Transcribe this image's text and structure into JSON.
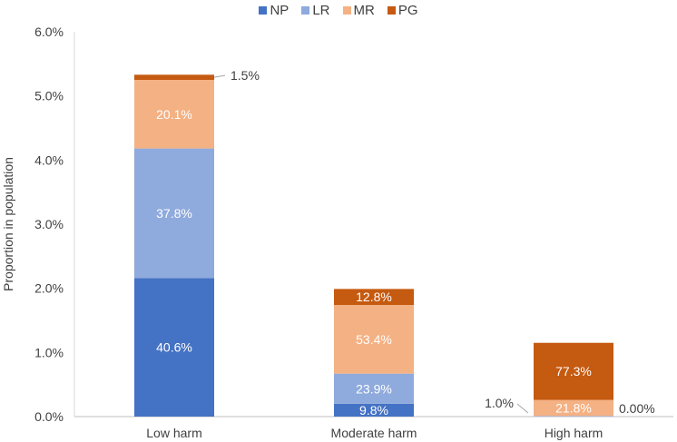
{
  "chart_data": {
    "type": "bar",
    "stacked": true,
    "ylabel": "Proportion in population",
    "ylim": [
      0,
      6.0
    ],
    "yticks": [
      "0.0%",
      "1.0%",
      "2.0%",
      "3.0%",
      "4.0%",
      "5.0%",
      "6.0%"
    ],
    "categories": [
      "Low harm",
      "Moderate harm",
      "High harm"
    ],
    "totals": [
      5.33,
      1.99,
      1.15
    ],
    "series": [
      {
        "name": "NP",
        "color": "#4472C4",
        "values": [
          2.16,
          0.2,
          0.0
        ],
        "labels": [
          "40.6%",
          "9.8%",
          "0.00%"
        ]
      },
      {
        "name": "LR",
        "color": "#8FAADC",
        "values": [
          2.02,
          0.47,
          0.01
        ],
        "labels": [
          "37.8%",
          "23.9%",
          "1.0%"
        ]
      },
      {
        "name": "MR",
        "color": "#F4B183",
        "values": [
          1.07,
          1.07,
          0.25
        ],
        "labels": [
          "20.1%",
          "53.4%",
          "21.8%"
        ]
      },
      {
        "name": "PG",
        "color": "#C55A11",
        "values": [
          0.08,
          0.25,
          0.89
        ],
        "labels": [
          "1.5%",
          "12.8%",
          "77.3%"
        ]
      }
    ],
    "legend": "top",
    "grid": false
  }
}
